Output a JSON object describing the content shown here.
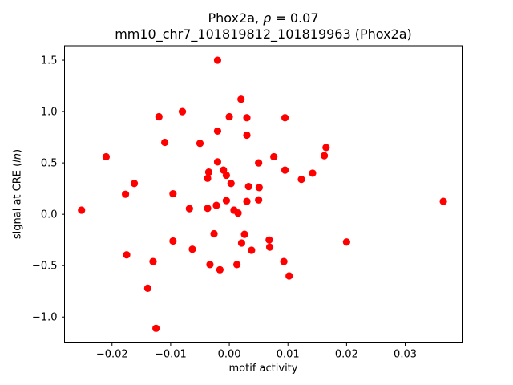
{
  "figure": {
    "title_line1_prefix": "Phox2a, ",
    "title_rho": "ρ",
    "title_line1_suffix": " = 0.07",
    "title_line2": "mm10_chr7_101819812_101819963 (Phox2a)",
    "xlabel": "motif activity",
    "ylabel_prefix": "signal at CRE (",
    "ylabel_italic": "ln",
    "ylabel_suffix": ")"
  },
  "chart_data": {
    "type": "scatter",
    "title": "Phox2a, ρ = 0.07",
    "subtitle": "mm10_chr7_101819812_101819963 (Phox2a)",
    "xlabel": "motif activity",
    "ylabel": "signal at CRE (ln)",
    "legend": "none",
    "grid": false,
    "marker_color": "#ff0000",
    "spine_color": "#000000",
    "xlim": [
      -0.0281,
      0.0397
    ],
    "ylim": [
      -1.252,
      1.641
    ],
    "x_ticks": {
      "values": [
        -0.02,
        -0.01,
        0.0,
        0.01,
        0.02,
        0.03
      ],
      "labels": [
        "−0.02",
        "−0.01",
        "0.00",
        "0.01",
        "0.02",
        "0.03"
      ]
    },
    "y_ticks": {
      "values": [
        -1.0,
        -0.5,
        0.0,
        0.5,
        1.0,
        1.5
      ],
      "labels": [
        "−1.0",
        "−0.5",
        "0.0",
        "0.5",
        "1.0",
        "1.5"
      ]
    },
    "points": [
      [
        -0.002,
        1.5
      ],
      [
        0.002,
        1.12
      ],
      [
        -0.012,
        0.95
      ],
      [
        -0.008,
        1.0
      ],
      [
        0.0,
        0.95
      ],
      [
        0.003,
        0.94
      ],
      [
        0.0095,
        0.94
      ],
      [
        -0.002,
        0.81
      ],
      [
        0.003,
        0.77
      ],
      [
        -0.011,
        0.7
      ],
      [
        -0.005,
        0.69
      ],
      [
        -0.021,
        0.56
      ],
      [
        0.0076,
        0.56
      ],
      [
        0.0165,
        0.65
      ],
      [
        0.0162,
        0.57
      ],
      [
        -0.002,
        0.51
      ],
      [
        0.005,
        0.5
      ],
      [
        -0.0035,
        0.41
      ],
      [
        -0.001,
        0.43
      ],
      [
        -0.0005,
        0.38
      ],
      [
        -0.0037,
        0.35
      ],
      [
        0.0095,
        0.43
      ],
      [
        0.0123,
        0.34
      ],
      [
        0.0142,
        0.4
      ],
      [
        0.0003,
        0.3
      ],
      [
        0.0033,
        0.27
      ],
      [
        0.0051,
        0.26
      ],
      [
        -0.0162,
        0.3
      ],
      [
        -0.0177,
        0.195
      ],
      [
        -0.0096,
        0.2
      ],
      [
        -0.0252,
        0.04
      ],
      [
        -0.0068,
        0.055
      ],
      [
        -0.0037,
        0.058
      ],
      [
        -0.0022,
        0.086
      ],
      [
        -0.0005,
        0.133
      ],
      [
        0.0008,
        0.04
      ],
      [
        0.0015,
        0.012
      ],
      [
        0.003,
        0.125
      ],
      [
        0.005,
        0.14
      ],
      [
        0.0365,
        0.125
      ],
      [
        -0.0026,
        -0.19
      ],
      [
        0.0026,
        -0.195
      ],
      [
        0.0021,
        -0.28
      ],
      [
        0.0038,
        -0.35
      ],
      [
        0.0068,
        -0.25
      ],
      [
        0.0069,
        -0.32
      ],
      [
        -0.0096,
        -0.26
      ],
      [
        -0.0063,
        -0.34
      ],
      [
        -0.0175,
        -0.395
      ],
      [
        -0.013,
        -0.46
      ],
      [
        -0.0033,
        -0.49
      ],
      [
        -0.0016,
        -0.54
      ],
      [
        0.0013,
        -0.49
      ],
      [
        0.0093,
        -0.46
      ],
      [
        0.0102,
        -0.6
      ],
      [
        0.02,
        -0.27
      ],
      [
        -0.0139,
        -0.72
      ],
      [
        -0.0125,
        -1.11
      ]
    ]
  }
}
